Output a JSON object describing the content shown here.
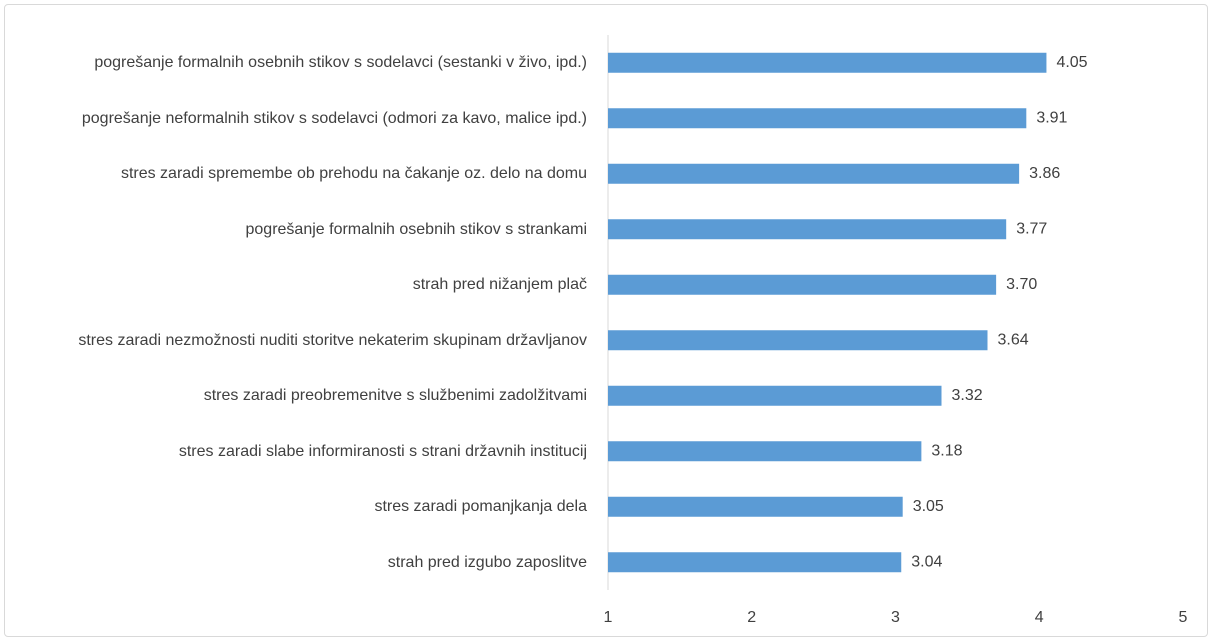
{
  "chart_data": {
    "type": "hbar",
    "color": "#5b9bd5",
    "categories": [
      "pogrešanje formalnih osebnih stikov s sodelavci (sestanki v živo, ipd.)",
      "pogrešanje neformalnih stikov s sodelavci (odmori za kavo, malice ipd.)",
      "stres zaradi spremembe ob prehodu na čakanje oz. delo na domu",
      "pogrešanje formalnih osebnih stikov s strankami",
      "strah pred nižanjem plač",
      "stres zaradi nezmožnosti nuditi storitve nekaterim skupinam državljanov",
      "stres zaradi preobremenitve s službenimi zadolžitvami",
      "stres zaradi slabe informiranosti s strani državnih institucij",
      "stres zaradi pomanjkanja dela",
      "strah pred izgubo zaposlitve"
    ],
    "values": [
      4.05,
      3.91,
      3.86,
      3.77,
      3.7,
      3.64,
      3.32,
      3.18,
      3.05,
      3.04
    ],
    "value_labels": [
      "4.05",
      "3.91",
      "3.86",
      "3.77",
      "3.70",
      "3.64",
      "3.32",
      "3.18",
      "3.05",
      "3.04"
    ],
    "xlim": [
      1,
      5
    ],
    "xticks": [
      1,
      2,
      3,
      4,
      5
    ],
    "grid": false
  }
}
